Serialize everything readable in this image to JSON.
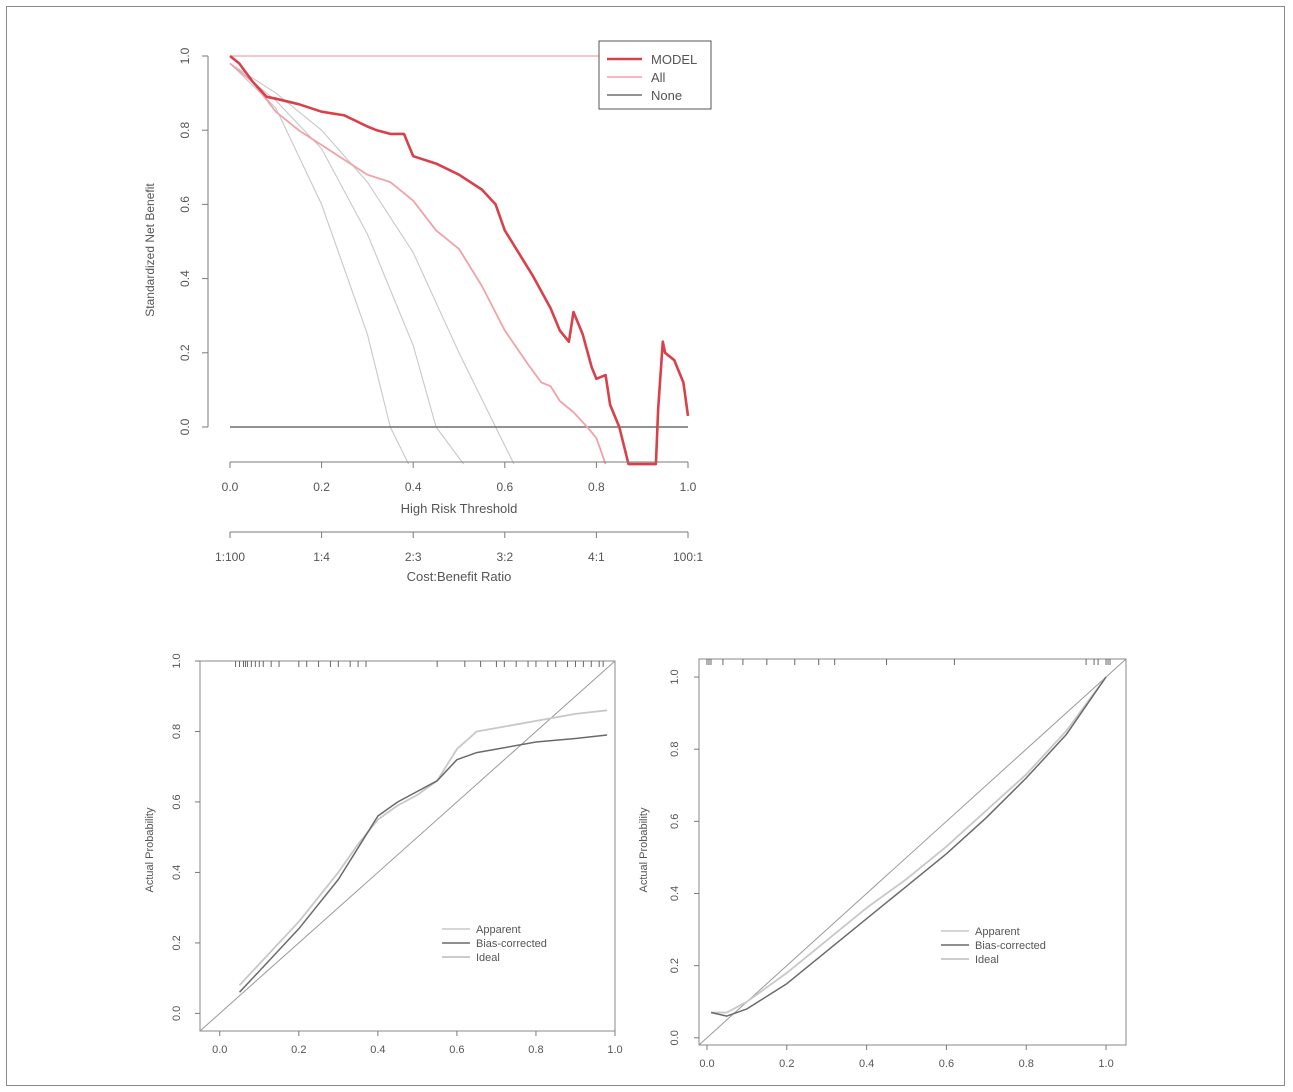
{
  "colors": {
    "model": "#d9404a",
    "all": "#f0a2a8",
    "none": "#6f6f6f",
    "lightgray": "#c8c8c8",
    "midgray": "#9a9a9a",
    "darkgray": "#6a6a6a",
    "axis": "#7a7a7a"
  },
  "chart_data": [
    {
      "type": "line",
      "title": "",
      "xlabel": "High Risk Threshold",
      "ylabel": "Standardized Net Benefit",
      "xlim": [
        0,
        1
      ],
      "ylim": [
        -0.1,
        1.0
      ],
      "xticks": [
        "0.0",
        "0.2",
        "0.4",
        "0.6",
        "0.8",
        "1.0"
      ],
      "yticks": [
        "0.0",
        "0.2",
        "0.4",
        "0.6",
        "0.8",
        "1.0"
      ],
      "secondary_axis": {
        "label": "Cost:Benefit Ratio",
        "ticks": [
          "1:100",
          "1:4",
          "2:3",
          "3:2",
          "4:1",
          "100:1"
        ]
      },
      "legend": {
        "placement": "top-right",
        "entries": [
          "MODEL",
          "All",
          "None"
        ]
      },
      "series": [
        {
          "name": "MODEL",
          "x": [
            0,
            0.02,
            0.05,
            0.08,
            0.1,
            0.15,
            0.2,
            0.25,
            0.3,
            0.32,
            0.35,
            0.38,
            0.4,
            0.45,
            0.5,
            0.55,
            0.58,
            0.6,
            0.63,
            0.66,
            0.7,
            0.72,
            0.74,
            0.75,
            0.77,
            0.79,
            0.8,
            0.82,
            0.83,
            0.85,
            0.86,
            0.87,
            0.93,
            0.935,
            0.945,
            0.95,
            0.97,
            0.99,
            1.0
          ],
          "y": [
            1.0,
            0.98,
            0.93,
            0.89,
            0.885,
            0.87,
            0.85,
            0.84,
            0.81,
            0.8,
            0.79,
            0.79,
            0.73,
            0.71,
            0.68,
            0.64,
            0.6,
            0.53,
            0.47,
            0.41,
            0.32,
            0.26,
            0.23,
            0.31,
            0.25,
            0.16,
            0.13,
            0.14,
            0.06,
            0.0,
            -0.05,
            -0.1,
            -0.1,
            0.05,
            0.23,
            0.2,
            0.18,
            0.12,
            0.03
          ]
        },
        {
          "name": "All",
          "x": [
            0,
            0.05,
            0.1,
            0.15,
            0.2,
            0.25,
            0.3,
            0.35,
            0.4,
            0.45,
            0.5,
            0.55,
            0.6,
            0.65,
            0.68,
            0.7,
            0.72,
            0.75,
            0.78,
            0.8,
            0.82
          ],
          "y": [
            0.98,
            0.93,
            0.85,
            0.8,
            0.76,
            0.72,
            0.68,
            0.66,
            0.61,
            0.53,
            0.48,
            0.38,
            0.26,
            0.17,
            0.12,
            0.11,
            0.07,
            0.04,
            0.0,
            -0.03,
            -0.1
          ]
        },
        {
          "name": "None",
          "x": [
            0,
            1
          ],
          "y": [
            0,
            0
          ]
        },
        {
          "name": "",
          "x": [
            0,
            1
          ],
          "y": [
            1.0,
            1.0
          ]
        },
        {
          "name": "",
          "x": [
            0,
            0.1,
            0.2,
            0.3,
            0.35,
            0.39
          ],
          "y": [
            0.98,
            0.86,
            0.6,
            0.25,
            0.0,
            -0.1
          ]
        },
        {
          "name": "",
          "x": [
            0,
            0.1,
            0.2,
            0.3,
            0.4,
            0.45,
            0.51
          ],
          "y": [
            0.98,
            0.88,
            0.75,
            0.52,
            0.22,
            0.0,
            -0.1
          ]
        },
        {
          "name": "",
          "x": [
            0,
            0.1,
            0.2,
            0.3,
            0.4,
            0.5,
            0.58,
            0.62
          ],
          "y": [
            0.98,
            0.9,
            0.8,
            0.66,
            0.47,
            0.2,
            0.0,
            -0.1
          ]
        }
      ]
    },
    {
      "type": "line",
      "title": "",
      "xlabel": "",
      "ylabel": "Actual Probability",
      "xlim": [
        -0.05,
        1.0
      ],
      "ylim": [
        -0.05,
        1.0
      ],
      "xticks": [
        "0.0",
        "0.2",
        "0.4",
        "0.6",
        "0.8",
        "1.0"
      ],
      "yticks": [
        "0.0",
        "0.2",
        "0.4",
        "0.6",
        "0.8",
        "1.0"
      ],
      "legend": {
        "placement": "bottom-right",
        "entries": [
          "Apparent",
          "Bias-corrected",
          "Ideal"
        ]
      },
      "rug": [
        0.04,
        0.05,
        0.06,
        0.065,
        0.07,
        0.08,
        0.09,
        0.1,
        0.11,
        0.13,
        0.15,
        0.2,
        0.22,
        0.25,
        0.28,
        0.3,
        0.33,
        0.35,
        0.37,
        0.55,
        0.62,
        0.66,
        0.7,
        0.72,
        0.75,
        0.78,
        0.8,
        0.83,
        0.85,
        0.88,
        0.9,
        0.92,
        0.94,
        0.96,
        0.97
      ],
      "series": [
        {
          "name": "Apparent",
          "x": [
            0.05,
            0.1,
            0.2,
            0.3,
            0.35,
            0.4,
            0.45,
            0.5,
            0.55,
            0.6,
            0.65,
            0.7,
            0.8,
            0.9,
            0.98
          ],
          "y": [
            0.08,
            0.14,
            0.26,
            0.4,
            0.48,
            0.55,
            0.59,
            0.62,
            0.66,
            0.75,
            0.8,
            0.81,
            0.83,
            0.85,
            0.86
          ]
        },
        {
          "name": "Bias-corrected",
          "x": [
            0.05,
            0.1,
            0.2,
            0.3,
            0.35,
            0.4,
            0.45,
            0.5,
            0.55,
            0.6,
            0.65,
            0.7,
            0.8,
            0.9,
            0.98
          ],
          "y": [
            0.06,
            0.12,
            0.24,
            0.38,
            0.47,
            0.56,
            0.6,
            0.63,
            0.66,
            0.72,
            0.74,
            0.75,
            0.77,
            0.78,
            0.79
          ]
        },
        {
          "name": "Ideal",
          "x": [
            -0.05,
            1.0
          ],
          "y": [
            -0.05,
            1.0
          ]
        }
      ]
    },
    {
      "type": "line",
      "title": "",
      "xlabel": "",
      "ylabel": "Actual Probability",
      "xlim": [
        -0.02,
        1.05
      ],
      "ylim": [
        -0.02,
        1.05
      ],
      "xticks": [
        "0.0",
        "0.2",
        "0.4",
        "0.6",
        "0.8",
        "1.0"
      ],
      "yticks": [
        "0.0",
        "0.2",
        "0.4",
        "0.6",
        "0.8",
        "1.0"
      ],
      "legend": {
        "placement": "bottom-right",
        "entries": [
          "Apparent",
          "Bias-corrected",
          "Ideal"
        ]
      },
      "rug": [
        0.0,
        0.005,
        0.01,
        0.04,
        0.09,
        0.15,
        0.22,
        0.28,
        0.32,
        0.45,
        0.62,
        0.95,
        0.97,
        0.98,
        1.0,
        1.005,
        1.01
      ],
      "series": [
        {
          "name": "Apparent",
          "x": [
            0.01,
            0.05,
            0.1,
            0.2,
            0.3,
            0.4,
            0.5,
            0.6,
            0.7,
            0.8,
            0.9,
            1.0
          ],
          "y": [
            0.07,
            0.07,
            0.1,
            0.18,
            0.27,
            0.36,
            0.44,
            0.53,
            0.63,
            0.73,
            0.85,
            1.0
          ]
        },
        {
          "name": "Bias-corrected",
          "x": [
            0.01,
            0.05,
            0.1,
            0.2,
            0.3,
            0.4,
            0.5,
            0.6,
            0.7,
            0.8,
            0.9,
            1.0
          ],
          "y": [
            0.07,
            0.06,
            0.08,
            0.15,
            0.24,
            0.33,
            0.42,
            0.51,
            0.61,
            0.72,
            0.84,
            1.0
          ]
        },
        {
          "name": "Ideal",
          "x": [
            -0.02,
            1.05
          ],
          "y": [
            -0.02,
            1.05
          ]
        }
      ]
    }
  ]
}
